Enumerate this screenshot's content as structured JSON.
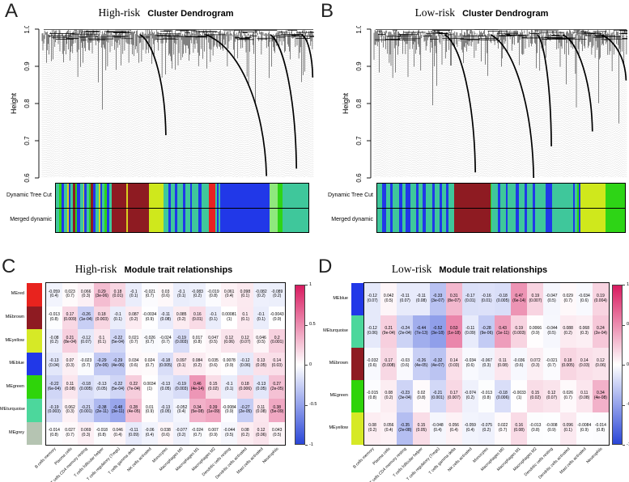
{
  "bar_colors": {
    "T": "#3fc79b",
    "B": "#2138e8",
    "G": "#2ed416",
    "Y": "#d8cf20",
    "N": "#8e1b22",
    "R": "#e82222",
    "GY": "#cfe81c",
    "LG": "#8fe87d"
  },
  "heatmap_colors": {
    "positive_end": "#d81b60",
    "negative_end": "#2a46d7",
    "mid": "#ffffff"
  },
  "chart_data": [
    {
      "type": "dendrogram",
      "panel": "A",
      "risk_label": "High-risk",
      "title": "Cluster Dendrogram",
      "ylabel": "Height",
      "ylim": [
        0.6,
        1.0
      ],
      "yticks": [
        "1.0",
        "0.9",
        "0.8",
        "0.7",
        "0.6"
      ],
      "bar_rows": [
        "Dynamic Tree Cut",
        "Merged dynamic"
      ],
      "seed": 11,
      "major_branches": [
        {
          "x0": 0.36,
          "x1": 0.455,
          "ymin": 0.715
        },
        {
          "x0": 0.6,
          "x1": 0.825,
          "ymin": 0.605
        },
        {
          "x0": 0.84,
          "x1": 0.935,
          "ymin": 0.625
        },
        {
          "x0": 0.955,
          "x1": 0.995,
          "ymin": 0.87
        }
      ],
      "segments": [
        [
          "T",
          1.4
        ],
        [
          "G",
          0.8
        ],
        [
          "B",
          0.9
        ],
        [
          "T",
          1.2
        ],
        [
          "Y",
          0.6
        ],
        [
          "B",
          0.8
        ],
        [
          "T",
          1.0
        ],
        [
          "N",
          0.7
        ],
        [
          "G",
          0.8
        ],
        [
          "B",
          1.1
        ],
        [
          "T",
          1.3
        ],
        [
          "Y",
          0.5
        ],
        [
          "B",
          0.7
        ],
        [
          "T",
          1.1
        ],
        [
          "G",
          0.6
        ],
        [
          "N",
          0.9
        ],
        [
          "B",
          0.8
        ],
        [
          "T",
          1.4
        ],
        [
          "Y",
          0.7
        ],
        [
          "B",
          0.6
        ],
        [
          "T",
          1.0
        ],
        [
          "G",
          0.7
        ],
        [
          "B",
          0.9
        ],
        [
          "T",
          1.2
        ],
        [
          "N",
          5.5
        ],
        [
          "Y",
          0.8
        ],
        [
          "N",
          8.0
        ],
        [
          "GY",
          5.5
        ],
        [
          "T",
          2.0
        ],
        [
          "B",
          1.0
        ],
        [
          "T",
          1.5
        ],
        [
          "B",
          0.8
        ],
        [
          "T",
          2.2
        ],
        [
          "B",
          1.2
        ],
        [
          "T",
          1.8
        ],
        [
          "B",
          0.7
        ],
        [
          "T",
          2.5
        ],
        [
          "B",
          1.0
        ],
        [
          "T",
          3.0
        ],
        [
          "R",
          2.4
        ],
        [
          "T",
          0.8
        ],
        [
          "B",
          0.5
        ],
        [
          "T",
          0.8
        ],
        [
          "B",
          19.0
        ],
        [
          "LG",
          3.0
        ],
        [
          "G",
          2.0
        ],
        [
          "T",
          10.0
        ]
      ]
    },
    {
      "type": "dendrogram",
      "panel": "B",
      "risk_label": "Low-risk",
      "title": "Cluster Dendrogram",
      "ylabel": "Height",
      "ylim": [
        0.6,
        1.0
      ],
      "yticks": [
        "1.0",
        "0.9",
        "0.8",
        "0.7",
        "0.6"
      ],
      "bar_rows": [
        "Dynamic Tree Cut",
        "Merged dynamic"
      ],
      "seed": 47,
      "major_branches": [
        {
          "x0": 0.28,
          "x1": 0.4,
          "ymin": 0.615
        },
        {
          "x0": 0.46,
          "x1": 0.63,
          "ymin": 0.6
        },
        {
          "x0": 0.645,
          "x1": 0.7,
          "ymin": 0.685
        },
        {
          "x0": 0.745,
          "x1": 0.862,
          "ymin": 0.725
        },
        {
          "x0": 0.89,
          "x1": 0.995,
          "ymin": 0.862
        }
      ],
      "segments": [
        [
          "T",
          2.0
        ],
        [
          "B",
          1.4
        ],
        [
          "T",
          1.6
        ],
        [
          "B",
          1.0
        ],
        [
          "T",
          2.4
        ],
        [
          "B",
          1.2
        ],
        [
          "T",
          1.4
        ],
        [
          "B",
          1.8
        ],
        [
          "T",
          2.0
        ],
        [
          "B",
          1.0
        ],
        [
          "T",
          1.6
        ],
        [
          "B",
          1.4
        ],
        [
          "T",
          2.4
        ],
        [
          "B",
          1.0
        ],
        [
          "T",
          1.8
        ],
        [
          "B",
          0.8
        ],
        [
          "T",
          1.6
        ],
        [
          "B",
          1.0
        ],
        [
          "T",
          2.0
        ],
        [
          "N",
          14.0
        ],
        [
          "G",
          0.5
        ],
        [
          "T",
          2.4
        ],
        [
          "B",
          1.0
        ],
        [
          "T",
          2.0
        ],
        [
          "B",
          0.8
        ],
        [
          "T",
          3.0
        ],
        [
          "B",
          1.2
        ],
        [
          "T",
          2.4
        ],
        [
          "B",
          0.8
        ],
        [
          "T",
          2.2
        ],
        [
          "B",
          1.0
        ],
        [
          "T",
          4.0
        ],
        [
          "B",
          2.4
        ],
        [
          "T",
          8.0
        ],
        [
          "B",
          0.8
        ],
        [
          "T",
          1.0
        ],
        [
          "G",
          0.6
        ],
        [
          "B",
          0.6
        ],
        [
          "GY",
          9.5
        ],
        [
          "G",
          7.5
        ]
      ]
    },
    {
      "type": "heatmap",
      "panel": "C",
      "risk_label": "High-risk",
      "title": "Module trait relationships",
      "colorbar_ticks": [
        "1",
        "0.5",
        "0",
        "-0.5",
        "-1"
      ],
      "columns": [
        "B cells memory",
        "Plasma cells",
        "T cells CD4 memory resting",
        "T cells follicular helper",
        "T cells regulatory (Tregs)",
        "T cells gamma delta",
        "NK cells activated",
        "Monocytes",
        "Macrophages M0",
        "Macrophages M1",
        "Macrophages M2",
        "Dendritic cells resting",
        "Dendritic cells activated",
        "Mast cells activated",
        "Neutrophils"
      ],
      "rows": [
        {
          "name": "MEred",
          "color": "#e8231e",
          "values": [
            "-0.059",
            "0.023",
            "0.066",
            "0.29",
            "0.18",
            "-0.1",
            "-0.021",
            "0.03",
            "-0.1",
            "-0.083",
            "-0.019",
            "0.061",
            "0.098",
            "-0.082",
            "-0.089"
          ],
          "pvalues": [
            "0.4",
            "0.7",
            "0.3",
            "3e-06",
            "0.01",
            "0.1",
            "0.7",
            "0.6",
            "0.1",
            "0.2",
            "0.8",
            "0.4",
            "0.1",
            "0.2",
            "0.2"
          ]
        },
        {
          "name": "MEbrown",
          "color": "#8e1b22",
          "values": [
            "-0.013",
            "0.17",
            "-0.26",
            "0.18",
            "-0.1",
            "0.087",
            "-0.0034",
            "-0.11",
            "0.085",
            "0.16",
            "-0.1",
            "0.00081",
            "0.1",
            "-0.1",
            "-0.0043"
          ],
          "pvalues": [
            "0.8",
            "0.009",
            "1e-04",
            "0.003",
            "0.1",
            "0.2",
            "0.9",
            "0.08",
            "0.2",
            "0.01",
            "0.1",
            "1",
            "0.1",
            "0.1",
            "0.9"
          ]
        },
        {
          "name": "MEyellow",
          "color": "#d6e926",
          "values": [
            "-0.08",
            "0.21",
            "-0.12",
            "0.1",
            "-0.22",
            "0.021",
            "-0.026",
            "-0.024",
            "-0.19",
            "0.017",
            "0.047",
            "0.12",
            "0.12",
            "0.046",
            "0.2"
          ],
          "pvalues": [
            "0.2",
            "8e-04",
            "0.07",
            "0.1",
            "5e-04",
            "0.7",
            "0.7",
            "0.7",
            "0.003",
            "0.8",
            "0.5",
            "0.06",
            "0.07",
            "0.5",
            "0.001"
          ]
        },
        {
          "name": "MEblue",
          "color": "#2138e8",
          "values": [
            "-0.13",
            "0.07",
            "-0.023",
            "-0.29",
            "-0.29",
            "0.034",
            "0.024",
            "-0.18",
            "0.097",
            "0.084",
            "0.035",
            "0.0078",
            "-0.12",
            "0.13",
            "0.14"
          ],
          "pvalues": [
            "0.04",
            "0.3",
            "0.7",
            "7e-06",
            "4e-06",
            "0.6",
            "0.7",
            "0.005",
            "0.1",
            "0.2",
            "0.6",
            "0.9",
            "0.06",
            "0.05",
            "0.03"
          ]
        },
        {
          "name": "MEgreen",
          "color": "#2fd40a",
          "values": [
            "-0.22",
            "0.11",
            "-0.18",
            "-0.13",
            "-0.22",
            "0.22",
            "0.0034",
            "-0.13",
            "-0.19",
            "0.46",
            "0.15",
            "-0.1",
            "0.18",
            "-0.13",
            "0.27"
          ],
          "pvalues": [
            "6e-04",
            "0.08",
            "0.005",
            "0.05",
            "5e-04",
            "7e-04",
            "1",
            "0.05",
            "0.003",
            "4e-14",
            "0.02",
            "0.1",
            "0.006",
            "0.05",
            "2e-05"
          ]
        },
        {
          "name": "MEturquoise",
          "color": "#4cd79c",
          "values": [
            "-0.19",
            "0.062",
            "-0.21",
            "-0.38",
            "-0.48",
            "0.28",
            "0.01",
            "-0.13",
            "-0.052",
            "0.34",
            "0.39",
            "-0.0084",
            "-0.27",
            "0.11",
            "0.38"
          ],
          "pvalues": [
            "0.003",
            "0.3",
            "0.001",
            "2e-11",
            "3e-11",
            "4e-05",
            "0.9",
            "0.05",
            "0.4",
            "5e-08",
            "1e-09",
            "0.9",
            "2e-05",
            "0.08",
            "5e-09"
          ]
        },
        {
          "name": "MEgrey",
          "color": "#b5c4b2",
          "values": [
            "-0.014",
            "0.027",
            "0.069",
            "-0.018",
            "0.046",
            "-0.11",
            "-0.06",
            "0.038",
            "-0.077",
            "-0.024",
            "0.007",
            "-0.044",
            "0.08",
            "0.12",
            "0.043"
          ],
          "pvalues": [
            "0.8",
            "0.7",
            "0.3",
            "0.8",
            "0.4",
            "0.09",
            "0.4",
            "0.6",
            "0.2",
            "0.7",
            "0.9",
            "0.5",
            "0.2",
            "0.06",
            "0.5"
          ]
        }
      ]
    },
    {
      "type": "heatmap",
      "panel": "D",
      "risk_label": "Low-risk",
      "title": "Module trait relationships",
      "colorbar_ticks": [
        "1",
        "0.5",
        "0",
        "-0.5",
        "-1"
      ],
      "columns": [
        "B cells memory",
        "Plasma cells",
        "T cells CD4 memory resting",
        "T cells follicular helper",
        "T cells regulatory (Tregs)",
        "T cells gamma delta",
        "NK cells activated",
        "Monocytes",
        "Macrophages M0",
        "Macrophages M1",
        "Macrophages M2",
        "Dendritic cells resting",
        "Dendritic cells activated",
        "Mast cells activated",
        "Neutrophils"
      ],
      "rows": [
        {
          "name": "MEblue",
          "color": "#2138e8",
          "values": [
            "-0.12",
            "0.042",
            "-0.11",
            "-0.11",
            "-0.33",
            "0.31",
            "-0.17",
            "-0.16",
            "-0.18",
            "0.47",
            "0.19",
            "-0.047",
            "0.029",
            "-0.034",
            "0.19"
          ],
          "pvalues": [
            "0.07",
            "0.5",
            "0.07",
            "0.08",
            "3e-07",
            "8e-07",
            "0.01",
            "0.01",
            "0.005",
            "6e-14",
            "0.007",
            "0.5",
            "0.7",
            "0.6",
            "0.004"
          ]
        },
        {
          "name": "MEturquoise",
          "color": "#4cd79c",
          "values": [
            "-0.12",
            "0.21",
            "-0.24",
            "-0.44",
            "-0.52",
            "0.53",
            "-0.11",
            "-0.28",
            "0.43",
            "0.19",
            "0.0066",
            "-0.044",
            "0.088",
            "0.068",
            "0.24"
          ],
          "pvalues": [
            "0.06",
            "9e-04",
            "2e-04",
            "7e-13",
            "3e-18",
            "1e-18",
            "0.09",
            "9e-06",
            "1e-11",
            "0.003",
            "0.9",
            "0.5",
            "0.2",
            "0.3",
            "2e-04"
          ]
        },
        {
          "name": "MEbrown",
          "color": "#8e1b22",
          "values": [
            "-0.032",
            "0.17",
            "-0.03",
            "-0.26",
            "-0.32",
            "0.14",
            "-0.034",
            "-0.067",
            "0.11",
            "-0.036",
            "0.072",
            "-0.021",
            "0.18",
            "0.14",
            "0.12"
          ],
          "pvalues": [
            "0.6",
            "0.008",
            "0.6",
            "4e-05",
            "4e-07",
            "0.03",
            "0.6",
            "0.3",
            "0.08",
            "0.6",
            "0.3",
            "0.7",
            "0.005",
            "0.03",
            "0.06"
          ]
        },
        {
          "name": "MEgreen",
          "color": "#2fd40a",
          "values": [
            "-0.015",
            "0.08",
            "-0.23",
            "0.02",
            "-0.21",
            "0.17",
            "-0.074",
            "-0.013",
            "-0.18",
            "-0.0033",
            "0.15",
            "0.12",
            "0.026",
            "0.11",
            "0.34"
          ],
          "pvalues": [
            "0.8",
            "0.2",
            "3e-04",
            "0.8",
            "0.001",
            "0.007",
            "0.2",
            "0.8",
            "0.006",
            "1",
            "0.02",
            "0.07",
            "0.7",
            "0.08",
            "4e-08"
          ]
        },
        {
          "name": "MEyellow",
          "color": "#d6e926",
          "values": [
            "0.08",
            "0.056",
            "-0.35",
            "0.15",
            "-0.048",
            "0.056",
            "-0.059",
            "-0.075",
            "0.022",
            "0.16",
            "-0.013",
            "-0.008",
            "0.096",
            "-0.0084",
            "-0.014"
          ],
          "pvalues": [
            "0.2",
            "0.4",
            "2e-08",
            "0.05",
            "0.4",
            "0.4",
            "0.4",
            "0.2",
            "0.7",
            "0.08",
            "0.8",
            "0.9",
            "0.1",
            "0.9",
            "0.8"
          ]
        }
      ]
    }
  ]
}
